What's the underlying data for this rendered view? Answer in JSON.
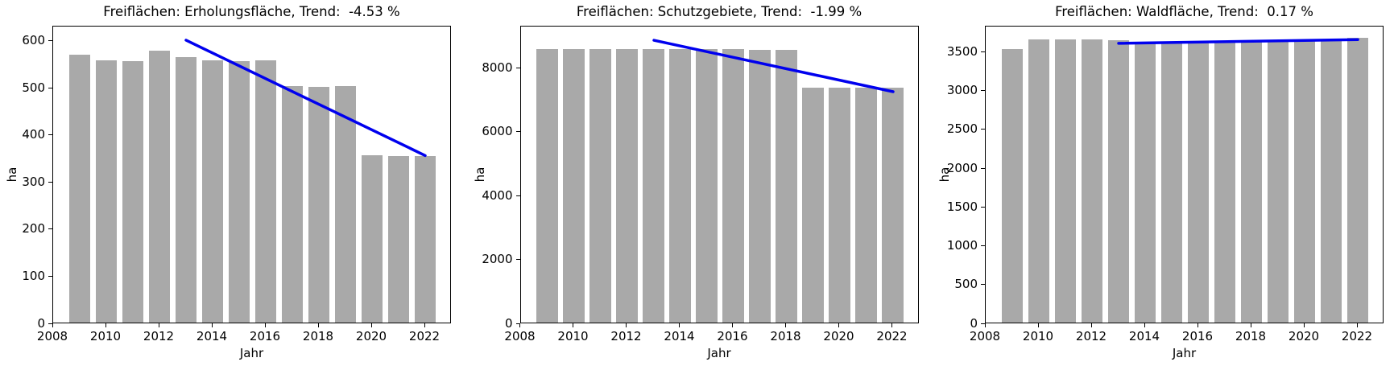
{
  "figure": {
    "background": "#ffffff",
    "bar_color": "#a9a9a9",
    "trend_color": "#0000ee",
    "axis_color": "#000000"
  },
  "chart_data": [
    {
      "type": "bar",
      "title": "Freiflächen: Erholungsfläche, Trend:  -4.53 %",
      "trend_pct": "-4.53 %",
      "xlabel": "Jahr",
      "ylabel": "ha",
      "categories": [
        2009,
        2010,
        2011,
        2012,
        2013,
        2014,
        2015,
        2016,
        2017,
        2018,
        2019,
        2020,
        2021,
        2022
      ],
      "values": [
        568,
        557,
        555,
        578,
        563,
        557,
        556,
        557,
        503,
        500,
        503,
        355,
        353,
        353
      ],
      "trend_line": {
        "x": [
          2013,
          2022
        ],
        "y": [
          603,
          358
        ]
      },
      "xlim": [
        2008,
        2023
      ],
      "ylim": [
        0,
        632
      ],
      "xticks": [
        2008,
        2010,
        2012,
        2014,
        2016,
        2018,
        2020,
        2022
      ],
      "yticks": [
        0,
        100,
        200,
        300,
        400,
        500,
        600
      ],
      "grid": false,
      "legend": "none"
    },
    {
      "type": "bar",
      "title": "Freiflächen: Schutzgebiete, Trend:  -1.99 %",
      "trend_pct": "-1.99 %",
      "xlabel": "Jahr",
      "ylabel": "ha",
      "categories": [
        2009,
        2010,
        2011,
        2012,
        2013,
        2014,
        2015,
        2016,
        2017,
        2018,
        2019,
        2020,
        2021,
        2022
      ],
      "values": [
        8570,
        8570,
        8570,
        8570,
        8570,
        8570,
        8570,
        8570,
        8540,
        8540,
        7350,
        7350,
        7350,
        7350
      ],
      "trend_line": {
        "x": [
          2013,
          2022
        ],
        "y": [
          8890,
          7280
        ]
      },
      "xlim": [
        2008,
        2023
      ],
      "ylim": [
        0,
        9320
      ],
      "xticks": [
        2008,
        2010,
        2012,
        2014,
        2016,
        2018,
        2020,
        2022
      ],
      "yticks": [
        0,
        2000,
        4000,
        6000,
        8000
      ],
      "grid": false,
      "legend": "none"
    },
    {
      "type": "bar",
      "title": "Freiflächen: Waldfläche, Trend:  0.17 %",
      "trend_pct": "0.17 %",
      "xlabel": "Jahr",
      "ylabel": "ha",
      "categories": [
        2009,
        2010,
        2011,
        2012,
        2013,
        2014,
        2015,
        2016,
        2017,
        2018,
        2019,
        2020,
        2021,
        2022
      ],
      "values": [
        3520,
        3650,
        3650,
        3648,
        3640,
        3618,
        3620,
        3625,
        3628,
        3630,
        3635,
        3640,
        3642,
        3670
      ],
      "trend_line": {
        "x": [
          2013,
          2022
        ],
        "y": [
          3620,
          3668
        ]
      },
      "xlim": [
        2008,
        2023
      ],
      "ylim": [
        0,
        3836
      ],
      "xticks": [
        2008,
        2010,
        2012,
        2014,
        2016,
        2018,
        2020,
        2022
      ],
      "yticks": [
        0,
        500,
        1000,
        1500,
        2000,
        2500,
        3000,
        3500
      ],
      "grid": false,
      "legend": "none"
    }
  ]
}
